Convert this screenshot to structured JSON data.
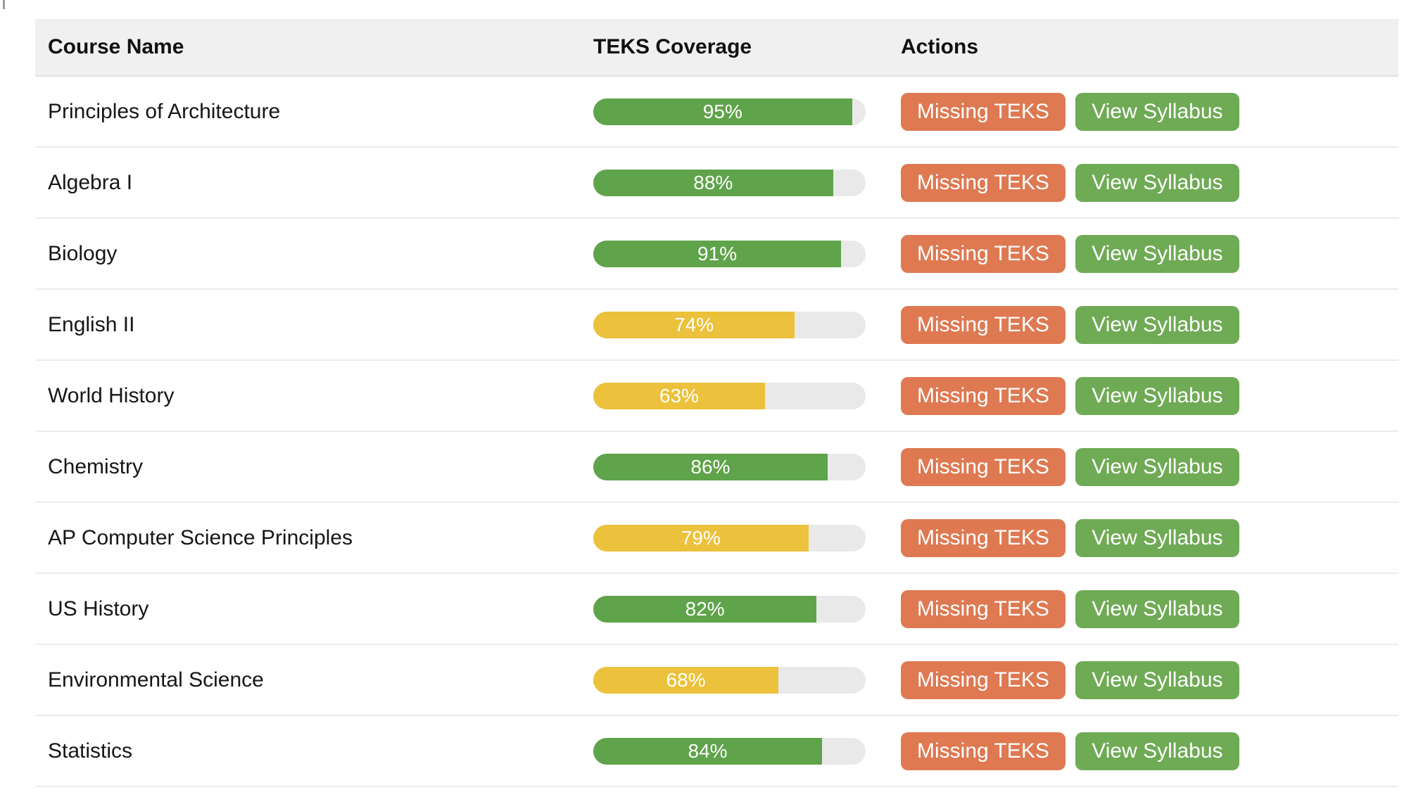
{
  "table": {
    "columns": [
      {
        "label": "Course Name"
      },
      {
        "label": "TEKS Coverage"
      },
      {
        "label": "Actions"
      }
    ],
    "actions": {
      "missing_teks_label": "Missing TEKS",
      "view_syllabus_label": "View Syllabus"
    },
    "rows": [
      {
        "course": "Principles of Architecture",
        "coverage_percent": 95,
        "coverage_label": "95%",
        "coverage_color": "green"
      },
      {
        "course": "Algebra I",
        "coverage_percent": 88,
        "coverage_label": "88%",
        "coverage_color": "green"
      },
      {
        "course": "Biology",
        "coverage_percent": 91,
        "coverage_label": "91%",
        "coverage_color": "green"
      },
      {
        "course": "English II",
        "coverage_percent": 74,
        "coverage_label": "74%",
        "coverage_color": "yellow"
      },
      {
        "course": "World History",
        "coverage_percent": 63,
        "coverage_label": "63%",
        "coverage_color": "yellow"
      },
      {
        "course": "Chemistry",
        "coverage_percent": 86,
        "coverage_label": "86%",
        "coverage_color": "green"
      },
      {
        "course": "AP Computer Science Principles",
        "coverage_percent": 79,
        "coverage_label": "79%",
        "coverage_color": "yellow"
      },
      {
        "course": "US History",
        "coverage_percent": 82,
        "coverage_label": "82%",
        "coverage_color": "green"
      },
      {
        "course": "Environmental Science",
        "coverage_percent": 68,
        "coverage_label": "68%",
        "coverage_color": "yellow"
      },
      {
        "course": "Statistics",
        "coverage_percent": 84,
        "coverage_label": "84%",
        "coverage_color": "green"
      }
    ]
  },
  "colors": {
    "bar_green": "#5fa34a",
    "bar_yellow": "#ecc13b",
    "bar_track": "#e9e9e9",
    "button_orange": "#de7952",
    "button_green": "#6faa55",
    "header_bg": "#f0f0f0"
  }
}
